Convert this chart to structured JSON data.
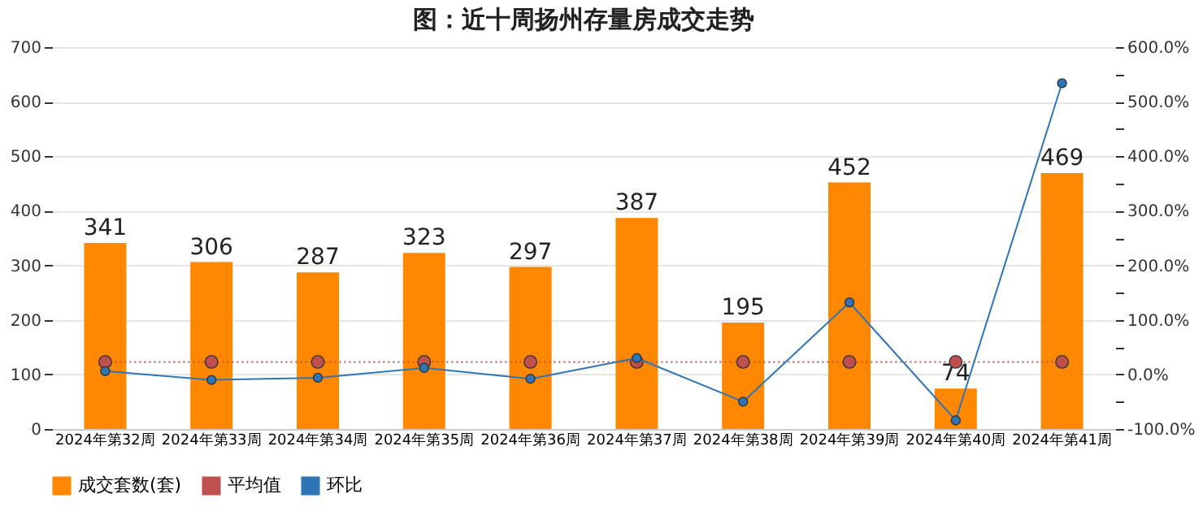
{
  "chart_data": {
    "type": "bar",
    "title": "图：近十周扬州存量房成交走势",
    "categories": [
      "2024年第32周",
      "2024年第33周",
      "2024年第34周",
      "2024年第35周",
      "2024年第36周",
      "2024年第37周",
      "2024年第38周",
      "2024年第39周",
      "2024年第40周",
      "2024年第41周"
    ],
    "series": [
      {
        "name": "成交套数(套)",
        "color": "#ff8800",
        "values": [
          341,
          306,
          287,
          323,
          297,
          387,
          195,
          452,
          74,
          469
        ],
        "value_labels": [
          "341",
          "306",
          "287",
          "323",
          "297",
          "387",
          "195",
          "452",
          "74",
          "469"
        ]
      },
      {
        "name": "平均值",
        "type": "line",
        "axis": "y2",
        "color": "#c0504d",
        "line_style": "dotted",
        "marker": "circle",
        "values": [
          23,
          23,
          23,
          23,
          23,
          23,
          23,
          23,
          23,
          23
        ]
      },
      {
        "name": "环比",
        "type": "line",
        "axis": "y2",
        "color": "#2e75b6",
        "line_style": "solid",
        "marker": "circle",
        "values": [
          6,
          -10,
          -6,
          12,
          -8,
          30,
          -50,
          132,
          -84,
          534
        ]
      }
    ],
    "ylim": [
      0,
      700
    ],
    "yticks": [
      0,
      100,
      200,
      300,
      400,
      500,
      600,
      700
    ],
    "y2lim": [
      -100,
      600
    ],
    "y2ticks": [
      {
        "value": -100,
        "label": "-100.0%"
      },
      {
        "value": -50,
        "label": null
      },
      {
        "value": 0,
        "label": "0.0%"
      },
      {
        "value": 50,
        "label": null
      },
      {
        "value": 100,
        "label": "100.0%"
      },
      {
        "value": 150,
        "label": null
      },
      {
        "value": 200,
        "label": "200.0%"
      },
      {
        "value": 250,
        "label": null
      },
      {
        "value": 300,
        "label": "300.0%"
      },
      {
        "value": 350,
        "label": null
      },
      {
        "value": 400,
        "label": "400.0%"
      },
      {
        "value": 450,
        "label": null
      },
      {
        "value": 500,
        "label": "500.0%"
      },
      {
        "value": 550,
        "label": null
      },
      {
        "value": 600,
        "label": "600.0%"
      }
    ],
    "grid": "y",
    "legend": "bottom"
  }
}
